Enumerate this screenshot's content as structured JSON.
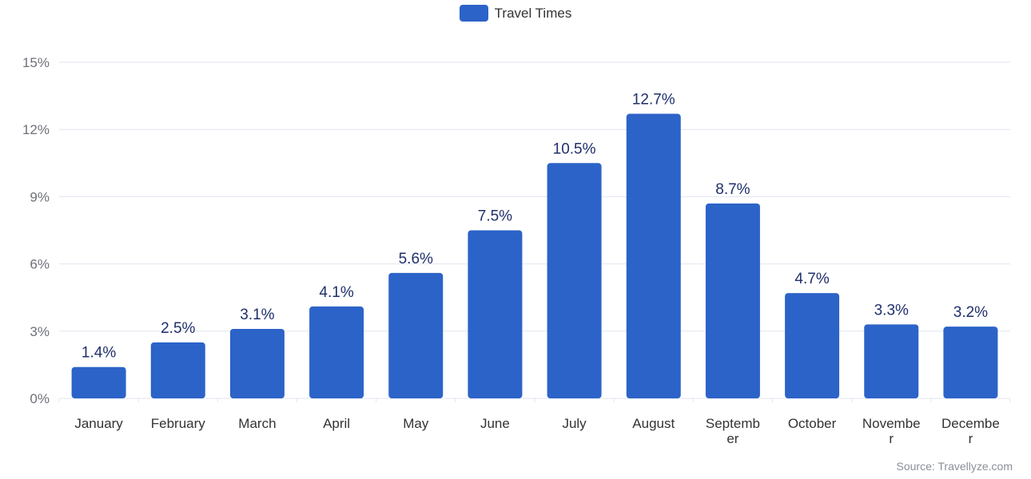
{
  "colors": {
    "bar": "#2c63c8",
    "grid": "#e2e6f0",
    "axis_text": "#6e7079",
    "cat_text": "#333333",
    "value_text": "#1f2f6b"
  },
  "legend": {
    "label": "Travel Times"
  },
  "source": "Source: Travellyze.com",
  "chart_data": {
    "type": "bar",
    "title": "",
    "xlabel": "",
    "ylabel": "",
    "legend_position": "top-center",
    "grid": true,
    "ylim": [
      0,
      15
    ],
    "yticks": [
      "0%",
      "3%",
      "6%",
      "9%",
      "12%",
      "15%"
    ],
    "ytick_values": [
      0,
      3,
      6,
      9,
      12,
      15
    ],
    "categories": [
      "January",
      "February",
      "March",
      "April",
      "May",
      "June",
      "July",
      "August",
      "September",
      "October",
      "November",
      "December"
    ],
    "tick_labels": [
      [
        "January"
      ],
      [
        "February"
      ],
      [
        "March"
      ],
      [
        "April"
      ],
      [
        "May"
      ],
      [
        "June"
      ],
      [
        "July"
      ],
      [
        "August"
      ],
      [
        "Septemb",
        "er"
      ],
      [
        "October"
      ],
      [
        "Novembe",
        "r"
      ],
      [
        "Decembe",
        "r"
      ]
    ],
    "series": [
      {
        "name": "Travel Times",
        "values": [
          1.4,
          2.5,
          3.1,
          4.1,
          5.6,
          7.5,
          10.5,
          12.7,
          8.7,
          4.7,
          3.3,
          3.2
        ],
        "labels": [
          "1.4%",
          "2.5%",
          "3.1%",
          "4.1%",
          "5.6%",
          "7.5%",
          "10.5%",
          "12.7%",
          "8.7%",
          "4.7%",
          "3.3%",
          "3.2%"
        ]
      }
    ]
  }
}
